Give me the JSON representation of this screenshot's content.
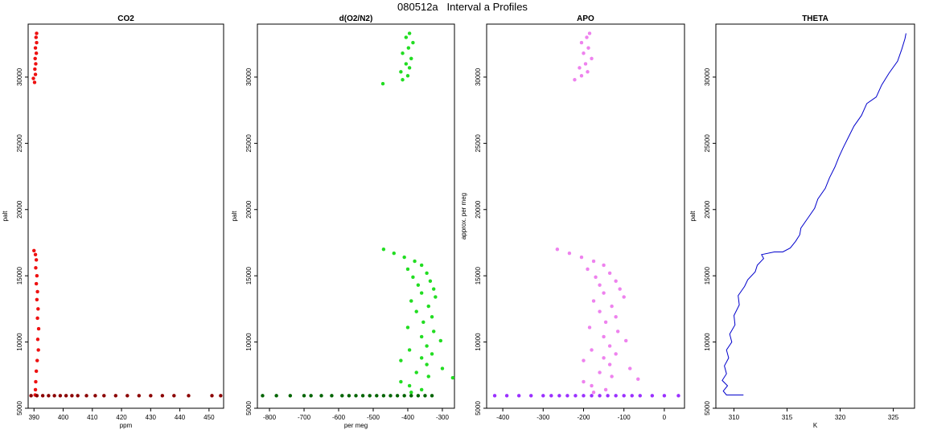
{
  "main_title": "080512a   Interval a Profiles",
  "chart_data": [
    {
      "type": "scatter",
      "title": "CO2",
      "xlabel": "ppm",
      "ylabel": "palt",
      "xlim": [
        388,
        455
      ],
      "ylim": [
        5000,
        34000
      ],
      "xticks": [
        390,
        400,
        410,
        420,
        430,
        440,
        450
      ],
      "yticks": [
        5000,
        10000,
        15000,
        20000,
        25000,
        30000
      ],
      "colors": {
        "profile": "#ee1111",
        "ground": "#8b0000"
      },
      "series": [
        {
          "color_key": "profile",
          "points": [
            [
              390.2,
              29600
            ],
            [
              389.8,
              29900
            ],
            [
              390.5,
              30200
            ],
            [
              390.3,
              30600
            ],
            [
              390.6,
              31000
            ],
            [
              390.4,
              31400
            ],
            [
              390.8,
              31800
            ],
            [
              390.5,
              32200
            ],
            [
              390.9,
              32600
            ],
            [
              390.7,
              33000
            ],
            [
              390.9,
              33300
            ],
            [
              390.0,
              16900
            ],
            [
              390.5,
              16600
            ],
            [
              390.8,
              16200
            ],
            [
              390.6,
              15600
            ],
            [
              391.0,
              15000
            ],
            [
              390.8,
              14400
            ],
            [
              391.2,
              13800
            ],
            [
              391.0,
              13200
            ],
            [
              391.4,
              12500
            ],
            [
              391.2,
              11800
            ],
            [
              391.6,
              11000
            ],
            [
              391.3,
              10200
            ],
            [
              391.5,
              9400
            ],
            [
              391.1,
              8600
            ],
            [
              390.8,
              7800
            ],
            [
              390.6,
              7000
            ],
            [
              390.5,
              6400
            ],
            [
              390.4,
              6000
            ]
          ]
        },
        {
          "color_key": "ground",
          "points": [
            [
              389,
              5950
            ],
            [
              391,
              5950
            ],
            [
              393,
              5950
            ],
            [
              395,
              5950
            ],
            [
              397,
              5950
            ],
            [
              399,
              5950
            ],
            [
              401,
              5950
            ],
            [
              403,
              5950
            ],
            [
              405,
              5950
            ],
            [
              408,
              5950
            ],
            [
              411,
              5950
            ],
            [
              414,
              5950
            ],
            [
              418,
              5950
            ],
            [
              422,
              5950
            ],
            [
              426,
              5950
            ],
            [
              430,
              5950
            ],
            [
              434,
              5950
            ],
            [
              438,
              5950
            ],
            [
              443,
              5950
            ],
            [
              451,
              5950
            ],
            [
              454,
              5950
            ]
          ]
        }
      ]
    },
    {
      "type": "scatter",
      "title": "d(O2/N2)",
      "xlabel": "per meg",
      "ylabel": "palt",
      "xlim": [
        -835,
        -265
      ],
      "ylim": [
        5000,
        34000
      ],
      "xticks": [
        -800,
        -700,
        -600,
        -500,
        -400,
        -300
      ],
      "yticks": [
        5000,
        10000,
        15000,
        20000,
        25000,
        30000
      ],
      "colors": {
        "profile": "#22dd22",
        "ground": "#006400"
      },
      "series": [
        {
          "color_key": "profile",
          "points": [
            [
              -472,
              29500
            ],
            [
              -415,
              29800
            ],
            [
              -400,
              30100
            ],
            [
              -420,
              30400
            ],
            [
              -395,
              30700
            ],
            [
              -405,
              31000
            ],
            [
              -390,
              31400
            ],
            [
              -415,
              31800
            ],
            [
              -398,
              32200
            ],
            [
              -385,
              32600
            ],
            [
              -405,
              33000
            ],
            [
              -395,
              33300
            ],
            [
              -470,
              17000
            ],
            [
              -440,
              16700
            ],
            [
              -410,
              16400
            ],
            [
              -380,
              16100
            ],
            [
              -360,
              15800
            ],
            [
              -400,
              15500
            ],
            [
              -345,
              15200
            ],
            [
              -385,
              14900
            ],
            [
              -335,
              14600
            ],
            [
              -370,
              14300
            ],
            [
              -325,
              14000
            ],
            [
              -360,
              13700
            ],
            [
              -320,
              13400
            ],
            [
              -390,
              13100
            ],
            [
              -340,
              12700
            ],
            [
              -375,
              12300
            ],
            [
              -330,
              11900
            ],
            [
              -355,
              11500
            ],
            [
              -400,
              11100
            ],
            [
              -325,
              10800
            ],
            [
              -360,
              10400
            ],
            [
              -305,
              10100
            ],
            [
              -345,
              9700
            ],
            [
              -395,
              9400
            ],
            [
              -330,
              9100
            ],
            [
              -360,
              8800
            ],
            [
              -420,
              8600
            ],
            [
              -345,
              8300
            ],
            [
              -300,
              8000
            ],
            [
              -375,
              7700
            ],
            [
              -340,
              7400
            ],
            [
              -270,
              7300
            ],
            [
              -420,
              7000
            ],
            [
              -395,
              6700
            ],
            [
              -360,
              6400
            ],
            [
              -390,
              6200
            ]
          ]
        },
        {
          "color_key": "ground",
          "points": [
            [
              -820,
              5950
            ],
            [
              -780,
              5950
            ],
            [
              -740,
              5950
            ],
            [
              -700,
              5950
            ],
            [
              -680,
              5950
            ],
            [
              -650,
              5950
            ],
            [
              -620,
              5950
            ],
            [
              -590,
              5950
            ],
            [
              -570,
              5950
            ],
            [
              -550,
              5950
            ],
            [
              -530,
              5950
            ],
            [
              -510,
              5950
            ],
            [
              -490,
              5950
            ],
            [
              -470,
              5950
            ],
            [
              -450,
              5950
            ],
            [
              -430,
              5950
            ],
            [
              -410,
              5950
            ],
            [
              -390,
              5950
            ],
            [
              -370,
              5950
            ],
            [
              -350,
              5950
            ],
            [
              -330,
              5950
            ]
          ]
        }
      ]
    },
    {
      "type": "scatter",
      "title": "APO",
      "xlabel": "",
      "ylabel": "approx. per meg",
      "xlim": [
        -440,
        50
      ],
      "ylim": [
        5000,
        34000
      ],
      "xticks": [
        -400,
        -300,
        -200,
        -100,
        0
      ],
      "yticks": [
        5000,
        10000,
        15000,
        20000,
        25000,
        30000
      ],
      "colors": {
        "profile": "#ee82ee",
        "ground": "#9b30ff"
      },
      "series": [
        {
          "color_key": "profile",
          "points": [
            [
              -222,
              29800
            ],
            [
              -205,
              30100
            ],
            [
              -190,
              30400
            ],
            [
              -210,
              30700
            ],
            [
              -195,
              31000
            ],
            [
              -180,
              31400
            ],
            [
              -200,
              31800
            ],
            [
              -188,
              32200
            ],
            [
              -205,
              32600
            ],
            [
              -192,
              33000
            ],
            [
              -185,
              33300
            ],
            [
              -265,
              17000
            ],
            [
              -235,
              16700
            ],
            [
              -205,
              16400
            ],
            [
              -175,
              16100
            ],
            [
              -150,
              15800
            ],
            [
              -190,
              15500
            ],
            [
              -135,
              15200
            ],
            [
              -170,
              14900
            ],
            [
              -120,
              14600
            ],
            [
              -160,
              14300
            ],
            [
              -110,
              14000
            ],
            [
              -150,
              13700
            ],
            [
              -100,
              13400
            ],
            [
              -175,
              13100
            ],
            [
              -130,
              12700
            ],
            [
              -160,
              12300
            ],
            [
              -120,
              11900
            ],
            [
              -145,
              11500
            ],
            [
              -185,
              11100
            ],
            [
              -115,
              10800
            ],
            [
              -150,
              10400
            ],
            [
              -95,
              10100
            ],
            [
              -135,
              9700
            ],
            [
              -180,
              9400
            ],
            [
              -120,
              9100
            ],
            [
              -150,
              8800
            ],
            [
              -200,
              8600
            ],
            [
              -135,
              8300
            ],
            [
              -85,
              8000
            ],
            [
              -160,
              7700
            ],
            [
              -130,
              7400
            ],
            [
              -65,
              7200
            ],
            [
              -200,
              7000
            ],
            [
              -180,
              6700
            ],
            [
              -145,
              6400
            ],
            [
              -175,
              6200
            ]
          ]
        },
        {
          "color_key": "ground",
          "points": [
            [
              -420,
              5950
            ],
            [
              -390,
              5950
            ],
            [
              -360,
              5950
            ],
            [
              -330,
              5950
            ],
            [
              -300,
              5950
            ],
            [
              -280,
              5950
            ],
            [
              -260,
              5950
            ],
            [
              -240,
              5950
            ],
            [
              -220,
              5950
            ],
            [
              -200,
              5950
            ],
            [
              -180,
              5950
            ],
            [
              -160,
              5950
            ],
            [
              -140,
              5950
            ],
            [
              -120,
              5950
            ],
            [
              -100,
              5950
            ],
            [
              -80,
              5950
            ],
            [
              -60,
              5950
            ],
            [
              -30,
              5950
            ],
            [
              0,
              5950
            ],
            [
              35,
              5950
            ]
          ]
        }
      ]
    },
    {
      "type": "line",
      "title": "THETA",
      "xlabel": "K",
      "ylabel": "palt",
      "xlim": [
        308.3,
        327
      ],
      "ylim": [
        5000,
        34000
      ],
      "xticks": [
        310,
        315,
        320,
        325
      ],
      "yticks": [
        5000,
        10000,
        15000,
        20000,
        25000,
        30000
      ],
      "colors": {
        "line": "#0000cc"
      },
      "series": [
        {
          "color_key": "line",
          "points": [
            [
              310.9,
              6000
            ],
            [
              309.3,
              6000
            ],
            [
              309.0,
              6300
            ],
            [
              309.4,
              6700
            ],
            [
              308.9,
              7100
            ],
            [
              309.3,
              7600
            ],
            [
              309.1,
              8200
            ],
            [
              309.5,
              8800
            ],
            [
              309.3,
              9400
            ],
            [
              309.8,
              10000
            ],
            [
              309.6,
              10600
            ],
            [
              310.1,
              11300
            ],
            [
              310.0,
              12000
            ],
            [
              310.5,
              12800
            ],
            [
              310.4,
              13500
            ],
            [
              311.0,
              14200
            ],
            [
              311.3,
              14700
            ],
            [
              312.0,
              15300
            ],
            [
              312.2,
              15800
            ],
            [
              312.8,
              16300
            ],
            [
              312.6,
              16600
            ],
            [
              313.8,
              16800
            ],
            [
              314.6,
              16800
            ],
            [
              315.3,
              17100
            ],
            [
              315.8,
              17600
            ],
            [
              316.2,
              18100
            ],
            [
              316.3,
              18600
            ],
            [
              317.0,
              19400
            ],
            [
              317.6,
              20100
            ],
            [
              317.9,
              20800
            ],
            [
              318.6,
              21600
            ],
            [
              319.0,
              22400
            ],
            [
              319.5,
              23200
            ],
            [
              319.9,
              24000
            ],
            [
              320.3,
              24700
            ],
            [
              320.8,
              25500
            ],
            [
              321.3,
              26300
            ],
            [
              322.0,
              27100
            ],
            [
              322.5,
              28000
            ],
            [
              323.4,
              28500
            ],
            [
              323.9,
              29400
            ],
            [
              324.6,
              30300
            ],
            [
              325.4,
              31200
            ],
            [
              325.8,
              32100
            ],
            [
              326.1,
              32900
            ],
            [
              326.2,
              33300
            ]
          ]
        }
      ]
    }
  ]
}
